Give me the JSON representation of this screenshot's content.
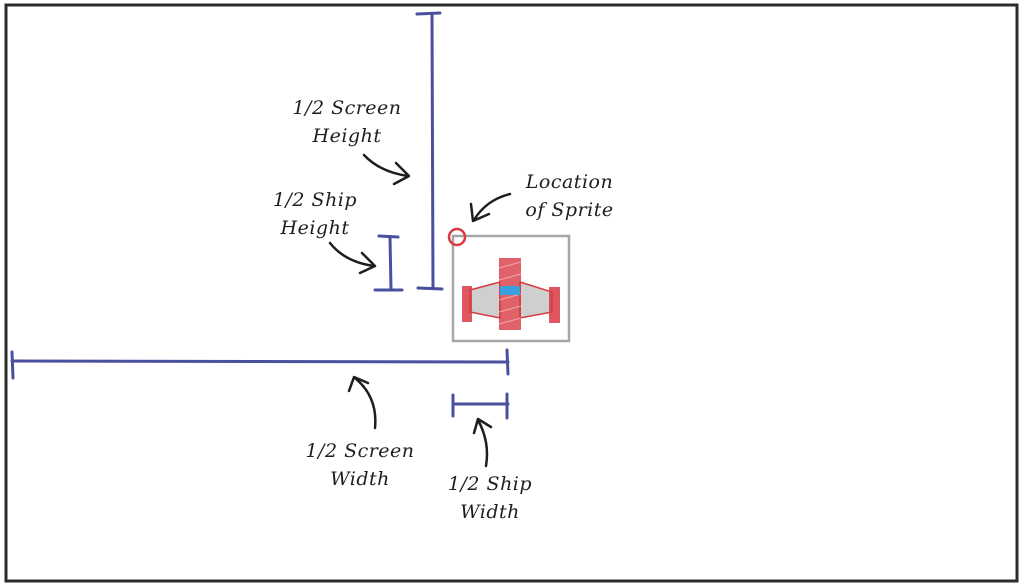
{
  "diagram": {
    "labels": {
      "half_screen_height": [
        "1/2 Screen",
        "Height"
      ],
      "half_ship_height": [
        "1/2 Ship",
        "Height"
      ],
      "location_of_sprite": [
        "Location",
        "of Sprite"
      ],
      "half_screen_width": [
        "1/2 Screen",
        "Width"
      ],
      "half_ship_width": [
        "1/2 Ship",
        "Width"
      ]
    },
    "colors": {
      "frame": "#2b2b2b",
      "measure": "#4a4f9e",
      "arrow": "#1e1e1e",
      "sprite_box": "#a6a6a6",
      "ship_red": "#d83a42",
      "ship_fill": "#cfcfcf",
      "cockpit": "#3aa0e0",
      "origin_marker": "#d83a42"
    },
    "icons": {
      "sprite": "spaceship-icon",
      "origin": "circle-marker-icon"
    }
  }
}
